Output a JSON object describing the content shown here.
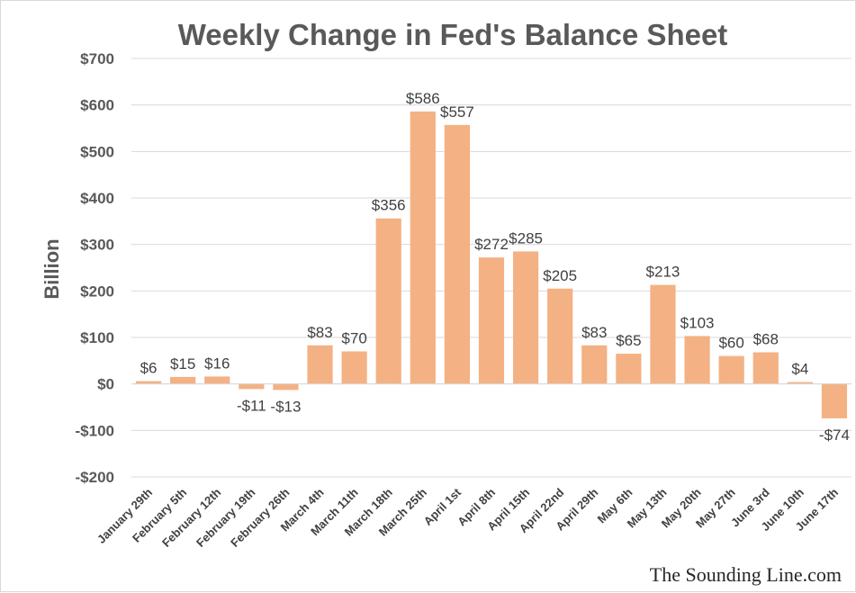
{
  "chart_data": {
    "type": "bar",
    "title": "Weekly Change in Fed's Balance Sheet",
    "ylabel": "Billion",
    "xlabel": "",
    "ylim": [
      -200,
      700
    ],
    "yticks": [
      -200,
      -100,
      0,
      100,
      200,
      300,
      400,
      500,
      600,
      700
    ],
    "ytick_labels": [
      "-$200",
      "-$100",
      "$0",
      "$100",
      "$200",
      "$300",
      "$400",
      "$500",
      "$600",
      "$700"
    ],
    "grid": true,
    "legend": "none",
    "bar_color": "#f4b183",
    "categories": [
      "January 29th",
      "February 5th",
      "February 12th",
      "February 19th",
      "February 26th",
      "March 4th",
      "March 11th",
      "March 18th",
      "March 25th",
      "April 1st",
      "April 8th",
      "April 15th",
      "April 22nd",
      "April 29th",
      "May 6th",
      "May 13th",
      "May 20th",
      "May 27th",
      "June 3rd",
      "June 10th",
      "June 17th"
    ],
    "values": [
      6,
      15,
      16,
      -11,
      -13,
      83,
      70,
      356,
      586,
      557,
      272,
      285,
      205,
      83,
      65,
      213,
      103,
      60,
      68,
      4,
      -74
    ],
    "data_labels": [
      "$6",
      "$15",
      "$16",
      "-$11",
      "-$13",
      "$83",
      "$70",
      "$356",
      "$586",
      "$557",
      "$272",
      "$285",
      "$205",
      "$83",
      "$65",
      "$213",
      "$103",
      "$60",
      "$68",
      "$4",
      "-$74"
    ]
  },
  "watermark": "The Sounding Line.com"
}
